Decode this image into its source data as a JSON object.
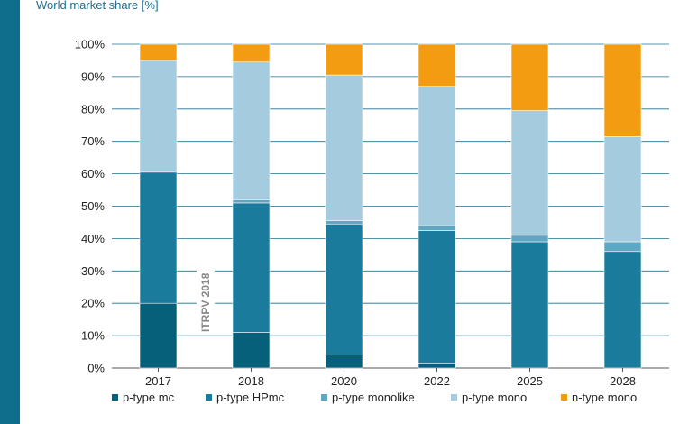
{
  "chart_data": {
    "type": "bar",
    "stacked": true,
    "title": "",
    "ylabel": "World market share [%]",
    "xlabel": "",
    "ylim": [
      0,
      100
    ],
    "yticks": [
      "0%",
      "10%",
      "20%",
      "30%",
      "40%",
      "50%",
      "60%",
      "70%",
      "80%",
      "90%",
      "100%"
    ],
    "categories": [
      "2017",
      "2018",
      "2020",
      "2022",
      "2025",
      "2028"
    ],
    "series": [
      {
        "name": "p-type mc",
        "color": "#06607a",
        "values": [
          20,
          11,
          4,
          1.5,
          0,
          0
        ]
      },
      {
        "name": "p-type HPmc",
        "color": "#1a7b9c",
        "values": [
          40.5,
          40,
          40.5,
          41,
          39,
          36
        ]
      },
      {
        "name": "p-type monolike",
        "color": "#5ea6c3",
        "values": [
          0,
          1,
          1,
          1.5,
          2,
          3
        ]
      },
      {
        "name": "p-type mono",
        "color": "#a4cbde",
        "values": [
          34.5,
          42.5,
          45,
          43,
          38.5,
          32.5
        ]
      },
      {
        "name": "n-type mono",
        "color": "#f39c12",
        "values": [
          5,
          5.5,
          9.5,
          13,
          20.5,
          28.5
        ]
      }
    ],
    "grid": true,
    "legend_position": "bottom",
    "annotation": "ITRPV 2018"
  }
}
